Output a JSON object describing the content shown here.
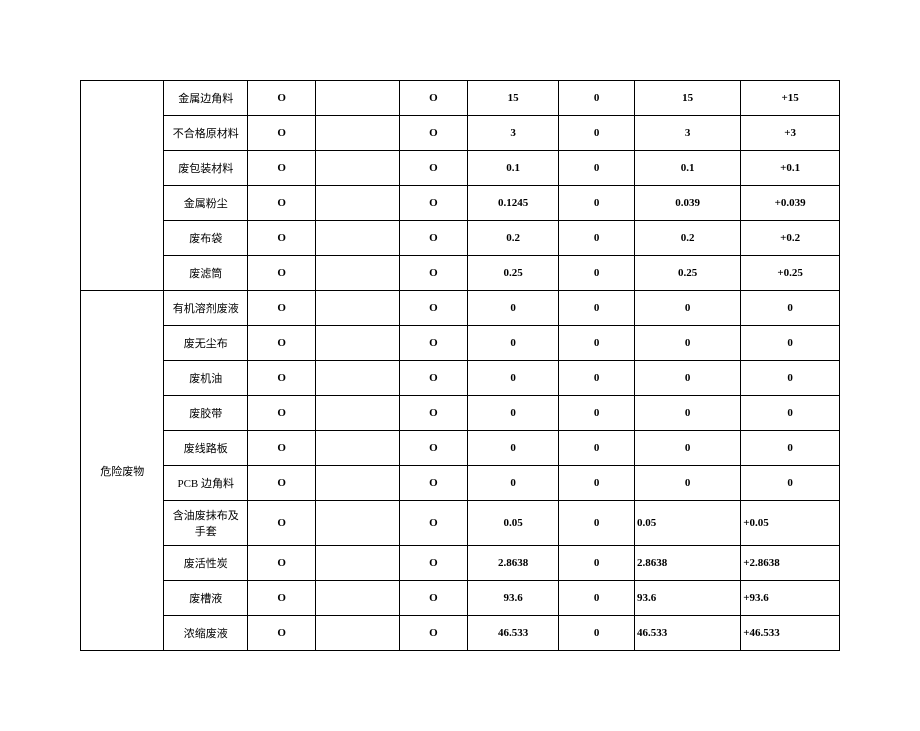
{
  "group1_rows": [
    {
      "label": "金属边角料",
      "c3": "O",
      "c4": "",
      "c5": "O",
      "c6": "15",
      "c7": "0",
      "c8": "15",
      "c9": "+15",
      "c8align": "center",
      "c9align": "center"
    },
    {
      "label": "不合格原材料",
      "c3": "O",
      "c4": "",
      "c5": "O",
      "c6": "3",
      "c7": "0",
      "c8": "3",
      "c9": "+3",
      "c8align": "center",
      "c9align": "center"
    },
    {
      "label": "废包装材料",
      "c3": "O",
      "c4": "",
      "c5": "O",
      "c6": "0.1",
      "c7": "0",
      "c8": "0.1",
      "c9": "+0.1",
      "c8align": "center",
      "c9align": "center"
    },
    {
      "label": "金属粉尘",
      "c3": "O",
      "c4": "",
      "c5": "O",
      "c6": "0.1245",
      "c7": "0",
      "c8": "0.039",
      "c9": "+0.039",
      "c8align": "center",
      "c9align": "center"
    },
    {
      "label": "废布袋",
      "c3": "O",
      "c4": "",
      "c5": "O",
      "c6": "0.2",
      "c7": "0",
      "c8": "0.2",
      "c9": "+0.2",
      "c8align": "center",
      "c9align": "center"
    },
    {
      "label": "废滤筒",
      "c3": "O",
      "c4": "",
      "c5": "O",
      "c6": "0.25",
      "c7": "0",
      "c8": "0.25",
      "c9": "+0.25",
      "c8align": "center",
      "c9align": "center"
    }
  ],
  "group2_category": "危险废物",
  "group2_rows": [
    {
      "label": "有机溶剂废液",
      "c3": "O",
      "c4": "",
      "c5": "O",
      "c6": "0",
      "c7": "0",
      "c8": "0",
      "c9": "0",
      "c8align": "center",
      "c9align": "center"
    },
    {
      "label": "废无尘布",
      "c3": "O",
      "c4": "",
      "c5": "O",
      "c6": "0",
      "c7": "0",
      "c8": "0",
      "c9": "0",
      "c8align": "center",
      "c9align": "center"
    },
    {
      "label": "废机油",
      "c3": "O",
      "c4": "",
      "c5": "O",
      "c6": "0",
      "c7": "0",
      "c8": "0",
      "c9": "0",
      "c8align": "center",
      "c9align": "center"
    },
    {
      "label": "废胶带",
      "c3": "O",
      "c4": "",
      "c5": "O",
      "c6": "0",
      "c7": "0",
      "c8": "0",
      "c9": "0",
      "c8align": "center",
      "c9align": "center"
    },
    {
      "label": "废线路板",
      "c3": "O",
      "c4": "",
      "c5": "O",
      "c6": "0",
      "c7": "0",
      "c8": "0",
      "c9": "0",
      "c8align": "center",
      "c9align": "center"
    },
    {
      "label": "PCB 边角料",
      "c3": "O",
      "c4": "",
      "c5": "O",
      "c6": "0",
      "c7": "0",
      "c8": "0",
      "c9": "0",
      "c8align": "center",
      "c9align": "center"
    },
    {
      "label": "含油废抹布及手套",
      "c3": "O",
      "c4": "",
      "c5": "O",
      "c6": "0.05",
      "c7": "0",
      "c8": "0.05",
      "c9": "+0.05",
      "c8align": "left",
      "c9align": "left"
    },
    {
      "label": "废活性炭",
      "c3": "O",
      "c4": "",
      "c5": "O",
      "c6": "2.8638",
      "c7": "0",
      "c8": "2.8638",
      "c9": "+2.8638",
      "c8align": "left",
      "c9align": "left"
    },
    {
      "label": "废槽液",
      "c3": "O",
      "c4": "",
      "c5": "O",
      "c6": "93.6",
      "c7": "0",
      "c8": "93.6",
      "c9": "+93.6",
      "c8align": "left",
      "c9align": "left"
    },
    {
      "label": "浓缩废液",
      "c3": "O",
      "c4": "",
      "c5": "O",
      "c6": "46.533",
      "c7": "0",
      "c8": "46.533",
      "c9": "+46.533",
      "c8align": "left",
      "c9align": "left"
    }
  ]
}
